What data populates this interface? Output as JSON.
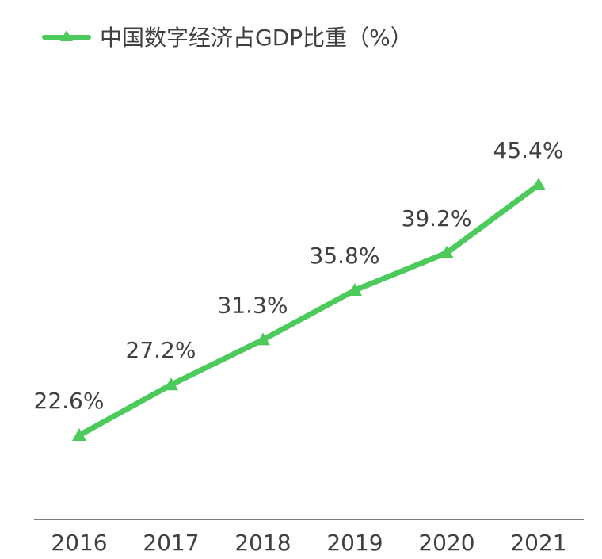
{
  "chart_data": {
    "type": "line",
    "title": "",
    "xlabel": "",
    "ylabel": "",
    "categories": [
      "2016",
      "2017",
      "2018",
      "2019",
      "2020",
      "2021"
    ],
    "series": [
      {
        "name": "中国数字经济占GDP比重（%）",
        "values": [
          22.6,
          27.2,
          31.3,
          35.8,
          39.2,
          45.4
        ],
        "labels": [
          "22.6%",
          "27.2%",
          "31.3%",
          "35.8%",
          "39.2%",
          "45.4%"
        ],
        "color": "#4CCB5C",
        "marker": "triangle"
      }
    ],
    "ylim": [
      10,
      55
    ],
    "grid": false,
    "legend": "top-left",
    "axis_color": "#7F7F7F"
  }
}
